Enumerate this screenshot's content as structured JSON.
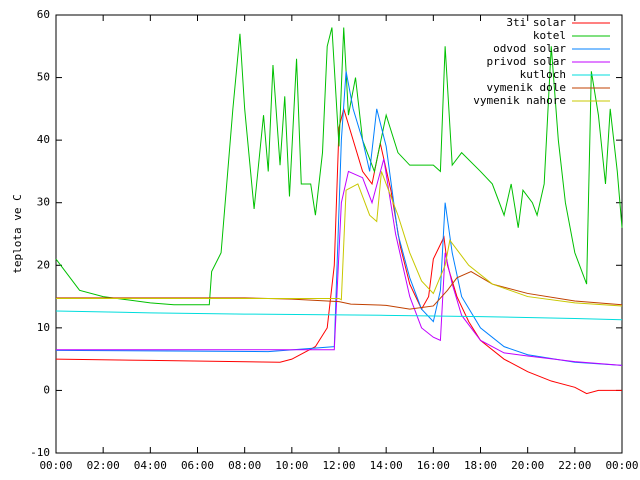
{
  "chart_data": {
    "type": "line",
    "ylabel": "teplota ve C",
    "xlim": [
      0,
      24
    ],
    "ylim": [
      -10,
      60
    ],
    "yticks": [
      -10,
      0,
      10,
      20,
      30,
      40,
      50,
      60
    ],
    "xticks": [
      {
        "value": 0,
        "label": "00:00"
      },
      {
        "value": 2,
        "label": "02:00"
      },
      {
        "value": 4,
        "label": "04:00"
      },
      {
        "value": 6,
        "label": "06:00"
      },
      {
        "value": 8,
        "label": "08:00"
      },
      {
        "value": 10,
        "label": "10:00"
      },
      {
        "value": 12,
        "label": "12:00"
      },
      {
        "value": 14,
        "label": "14:00"
      },
      {
        "value": 16,
        "label": "16:00"
      },
      {
        "value": 18,
        "label": "18:00"
      },
      {
        "value": 20,
        "label": "20:00"
      },
      {
        "value": 22,
        "label": "22:00"
      },
      {
        "value": 24,
        "label": "00:00"
      }
    ],
    "legend": "top-right",
    "series": [
      {
        "name": "3ti solar",
        "color": "#ff0000",
        "x": [
          0,
          4,
          9.5,
          10,
          11,
          11.5,
          11.8,
          12,
          12.2,
          12.6,
          13,
          13.4,
          13.75,
          14.2,
          14.6,
          15,
          15.5,
          15.8,
          16,
          16.45,
          16.6,
          17,
          17.5,
          18,
          19,
          20,
          21,
          22,
          22.5,
          23,
          24
        ],
        "values": [
          5,
          4.8,
          4.5,
          5,
          7,
          10,
          20,
          42,
          45,
          40,
          35,
          33,
          39.5,
          32,
          23,
          17,
          13,
          15,
          21,
          24.5,
          20,
          15,
          11,
          8,
          5,
          3,
          1.5,
          0.5,
          -0.5,
          0,
          0
        ]
      },
      {
        "name": "kotel",
        "color": "#00c000",
        "x": [
          0,
          1,
          2,
          3,
          4,
          5,
          6.5,
          6.6,
          7,
          7.5,
          7.8,
          8,
          8.4,
          8.8,
          9,
          9.2,
          9.5,
          9.7,
          9.9,
          10.2,
          10.4,
          10.8,
          11,
          11.3,
          11.5,
          11.7,
          12,
          12.2,
          12.4,
          12.7,
          13,
          13.5,
          14,
          14.5,
          15,
          16,
          16.3,
          16.5,
          16.8,
          17.2,
          18,
          18.5,
          19,
          19.3,
          19.6,
          19.8,
          20.2,
          20.4,
          20.7,
          21,
          21.3,
          21.6,
          22,
          22.5,
          22.7,
          23,
          23.3,
          23.5,
          23.8,
          24
        ],
        "values": [
          21,
          16,
          15,
          14.5,
          14,
          13.7,
          13.7,
          19,
          22,
          45,
          57,
          45,
          29,
          44,
          35,
          52,
          36,
          47,
          31,
          53,
          33,
          33,
          28,
          38,
          55,
          58,
          39,
          58,
          44,
          50,
          40,
          35,
          44,
          38,
          36,
          36,
          35,
          55,
          36,
          38,
          35,
          33,
          28,
          33,
          26,
          32,
          30,
          28,
          33,
          55,
          40,
          30,
          22,
          17,
          51,
          44,
          33,
          45,
          35,
          26
        ]
      },
      {
        "name": "odvod solar",
        "color": "#0080ff",
        "x": [
          0,
          9,
          11.8,
          12.1,
          12.3,
          12.6,
          13,
          13.3,
          13.6,
          14,
          14.5,
          15,
          15.5,
          16,
          16.3,
          16.5,
          16.8,
          17.2,
          18,
          19,
          20,
          22,
          24
        ],
        "values": [
          6.4,
          6.2,
          7,
          40,
          51,
          45,
          40,
          35,
          45,
          39,
          25,
          18,
          13,
          11,
          16,
          30,
          22,
          15,
          10,
          7,
          5.7,
          4.5,
          4
        ]
      },
      {
        "name": "privod solar",
        "color": "#c000ff",
        "x": [
          0,
          11.8,
          12.1,
          12.4,
          13,
          13.4,
          13.9,
          14.4,
          15,
          15.5,
          16,
          16.3,
          16.5,
          16.8,
          17.2,
          18,
          19,
          20,
          22,
          24
        ],
        "values": [
          6.5,
          6.5,
          30,
          35,
          34,
          30,
          37,
          25,
          15,
          10,
          8.5,
          8,
          22,
          17,
          12,
          8,
          6,
          5.5,
          4.6,
          4
        ]
      },
      {
        "name": "kutloch",
        "color": "#00dddd",
        "x": [
          0,
          4,
          8,
          14,
          18,
          22,
          24
        ],
        "values": [
          12.7,
          12.4,
          12.2,
          12,
          11.8,
          11.5,
          11.3
        ]
      },
      {
        "name": "vymenik dole",
        "color": "#c04000",
        "x": [
          0,
          8,
          10,
          12,
          12.5,
          14,
          15,
          16,
          16.6,
          17,
          17.6,
          18.5,
          20,
          22,
          24
        ],
        "values": [
          14.8,
          14.8,
          14.6,
          14.2,
          13.8,
          13.6,
          13,
          13.5,
          16,
          18,
          19,
          17,
          15.5,
          14.3,
          13.7
        ]
      },
      {
        "name": "vymenik nahore",
        "color": "#c8c800",
        "x": [
          0,
          12,
          12.1,
          12.3,
          12.8,
          13.3,
          13.6,
          13.8,
          14.5,
          15,
          15.5,
          16,
          16.5,
          16.7,
          17.5,
          18.5,
          20,
          22,
          24
        ],
        "values": [
          14.7,
          14.7,
          14.5,
          32,
          33,
          28,
          27,
          35,
          28,
          22,
          17.5,
          15.5,
          20,
          24,
          20,
          17,
          15,
          14,
          13.5
        ]
      }
    ]
  }
}
